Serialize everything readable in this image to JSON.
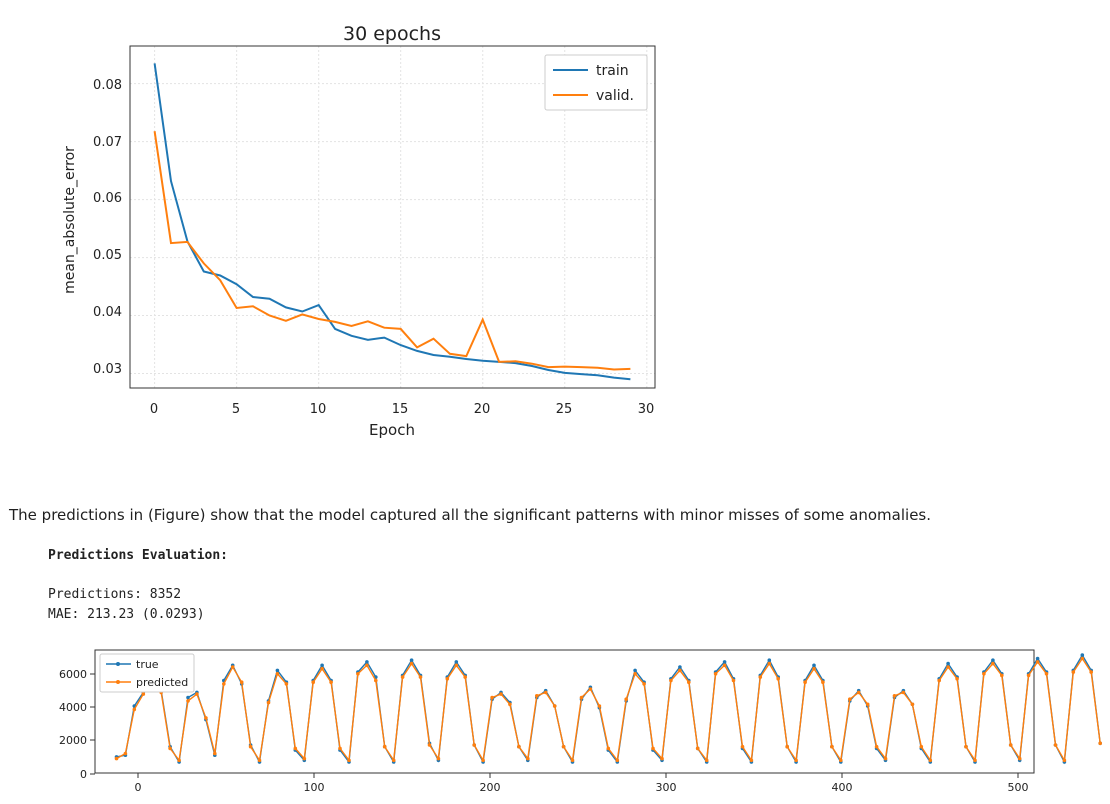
{
  "chart1": {
    "title": "30 epochs",
    "xlabel": "Epoch",
    "ylabel": "mean_absolute_error",
    "xticks": [
      "0",
      "5",
      "10",
      "15",
      "20",
      "25",
      "30"
    ],
    "yticks": [
      "0.03",
      "0.04",
      "0.05",
      "0.06",
      "0.07",
      "0.08"
    ],
    "legend": [
      "train",
      "valid."
    ]
  },
  "text": {
    "paragraph": "The predictions in (Figure) show that the model captured all the significant patterns with minor misses of some anomalies.",
    "eval_heading": "Predictions Evaluation:",
    "predictions_line": "Predictions: 8352",
    "mae_line": "MAE: 213.23 (0.0293)"
  },
  "chart2": {
    "xticks": [
      "0",
      "100",
      "200",
      "300",
      "400",
      "500"
    ],
    "yticks": [
      "0",
      "2000",
      "4000",
      "6000"
    ],
    "legend": [
      "true",
      "predicted"
    ]
  },
  "colors": {
    "train": "#1f77b4",
    "valid": "#ff7f0e"
  },
  "chart_data": [
    {
      "type": "line",
      "title": "30 epochs",
      "xlabel": "Epoch",
      "ylabel": "mean_absolute_error",
      "xlim": [
        -1.5,
        30.5
      ],
      "ylim": [
        0.0275,
        0.0865
      ],
      "grid": true,
      "legend_position": "top-right",
      "x": [
        0,
        1,
        2,
        3,
        4,
        5,
        6,
        7,
        8,
        9,
        10,
        11,
        12,
        13,
        14,
        15,
        16,
        17,
        18,
        19,
        20,
        21,
        22,
        23,
        24,
        25,
        26,
        27,
        28,
        29
      ],
      "series": [
        {
          "name": "train",
          "color": "#1f77b4",
          "values": [
            0.0835,
            0.0632,
            0.0528,
            0.0476,
            0.0469,
            0.0454,
            0.0432,
            0.0429,
            0.0414,
            0.0407,
            0.0418,
            0.0377,
            0.0365,
            0.0358,
            0.0362,
            0.0349,
            0.0339,
            0.0332,
            0.0329,
            0.0325,
            0.0322,
            0.032,
            0.0318,
            0.0313,
            0.0306,
            0.0301,
            0.0299,
            0.0297,
            0.0293,
            0.029
          ]
        },
        {
          "name": "valid.",
          "color": "#ff7f0e",
          "values": [
            0.0718,
            0.0525,
            0.0527,
            0.049,
            0.0461,
            0.0413,
            0.0416,
            0.04,
            0.0391,
            0.0402,
            0.0394,
            0.0389,
            0.0382,
            0.039,
            0.0379,
            0.0377,
            0.0345,
            0.036,
            0.0334,
            0.033,
            0.0393,
            0.032,
            0.0321,
            0.0317,
            0.0311,
            0.0312,
            0.0311,
            0.031,
            0.0307,
            0.0308
          ]
        }
      ]
    },
    {
      "type": "line",
      "title": "",
      "xlabel": "",
      "ylabel": "",
      "xlim": [
        -12,
        513
      ],
      "ylim": [
        -150,
        7100
      ],
      "grid": false,
      "legend_position": "top-left",
      "x_start": 0,
      "x_step": 5,
      "series": [
        {
          "name": "true",
          "color": "#1f77b4",
          "values": [
            800,
            900,
            3800,
            4600,
            6000,
            4700,
            1400,
            500,
            4300,
            4600,
            3000,
            900,
            5300,
            6200,
            5100,
            1500,
            500,
            4100,
            5900,
            5200,
            1200,
            600,
            5300,
            6200,
            5300,
            1200,
            500,
            5800,
            6400,
            5500,
            1400,
            500,
            5600,
            6500,
            5600,
            1600,
            600,
            5500,
            6400,
            5600,
            1500,
            500,
            4200,
            4600,
            4000,
            1400,
            600,
            4300,
            4700,
            3800,
            1400,
            500,
            4200,
            4900,
            3700,
            1200,
            500,
            4100,
            5900,
            5200,
            1200,
            600,
            5400,
            6100,
            5300,
            1300,
            500,
            5800,
            6400,
            5400,
            1300,
            500,
            5600,
            6500,
            5500,
            1400,
            500,
            5300,
            6200,
            5300,
            1400,
            500,
            4100,
            4700,
            3800,
            1300,
            600,
            4300,
            4700,
            3900,
            1300,
            500,
            5400,
            6300,
            5500,
            1400,
            500,
            5800,
            6500,
            5700,
            1500,
            600,
            5700,
            6600,
            5800,
            1500,
            500,
            5900,
            6800,
            5900,
            1600
          ]
        },
        {
          "name": "predicted",
          "color": "#ff7f0e",
          "values": [
            700,
            1000,
            3600,
            4500,
            5800,
            4600,
            1300,
            600,
            4100,
            4500,
            3100,
            1000,
            5100,
            6100,
            5200,
            1400,
            600,
            4000,
            5700,
            5100,
            1300,
            700,
            5200,
            6000,
            5200,
            1300,
            600,
            5700,
            6200,
            5300,
            1400,
            600,
            5500,
            6300,
            5500,
            1500,
            700,
            5400,
            6200,
            5500,
            1500,
            600,
            4300,
            4500,
            3900,
            1400,
            700,
            4400,
            4600,
            3800,
            1400,
            600,
            4300,
            4800,
            3800,
            1300,
            600,
            4200,
            5700,
            5100,
            1300,
            700,
            5300,
            5900,
            5200,
            1300,
            600,
            5700,
            6200,
            5300,
            1400,
            600,
            5500,
            6300,
            5400,
            1400,
            600,
            5200,
            6000,
            5200,
            1400,
            600,
            4200,
            4600,
            3900,
            1400,
            700,
            4400,
            4600,
            3900,
            1400,
            600,
            5300,
            6100,
            5400,
            1400,
            600,
            5700,
            6300,
            5600,
            1500,
            700,
            5600,
            6400,
            5700,
            1500,
            600,
            5800,
            6600,
            5800,
            1600
          ]
        }
      ]
    }
  ]
}
